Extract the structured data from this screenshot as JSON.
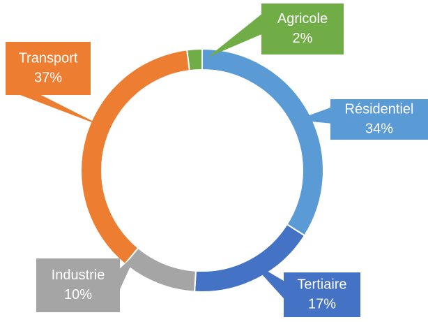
{
  "chart_data": {
    "type": "donut",
    "categories": [
      "Résidentiel",
      "Tertiaire",
      "Industrie",
      "Transport",
      "Agricole"
    ],
    "values": [
      34,
      17,
      10,
      37,
      2
    ],
    "value_labels": [
      "34%",
      "17%",
      "10%",
      "37%",
      "2%"
    ],
    "colors": [
      "#5b9bd5",
      "#4472c4",
      "#a5a5a5",
      "#ed7d31",
      "#70ad47"
    ]
  }
}
